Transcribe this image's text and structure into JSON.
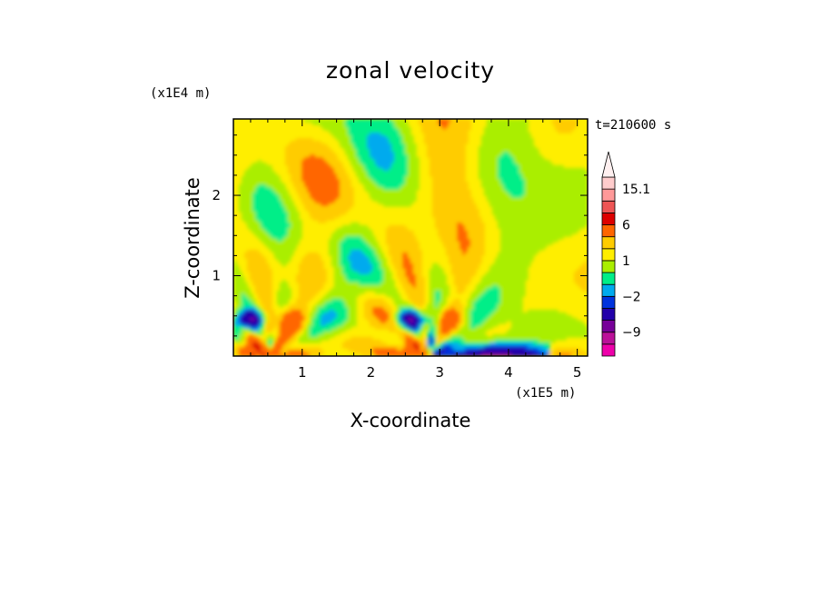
{
  "chart_data": {
    "type": "heatmap",
    "title": "zonal velocity",
    "xlabel": "X-coordinate",
    "ylabel": "Z-coordinate",
    "x_scale_label": "(x1E5 m)",
    "y_scale_label": "(x1E4 m)",
    "time_label": "t=210600 s",
    "xlim": [
      0,
      5.15
    ],
    "ylim": [
      0,
      2.95
    ],
    "x_ticks": [
      "1",
      "2",
      "3",
      "4",
      "5"
    ],
    "y_ticks": [
      "1",
      "2"
    ],
    "x_tick_values": [
      1,
      2,
      3,
      4,
      5
    ],
    "y_tick_values": [
      1,
      2
    ],
    "colorbar": {
      "labels": [
        "15.1",
        "6",
        "1",
        "-2",
        "-9"
      ],
      "label_values": [
        15.1,
        6,
        1,
        -2,
        -9
      ],
      "levels": [
        -15,
        -12,
        -9,
        -6,
        -3,
        -2,
        -1,
        0,
        1,
        2,
        3,
        6,
        9,
        12,
        15.1
      ],
      "colors": [
        "#ee00aa",
        "#bb1199",
        "#770099",
        "#2200aa",
        "#0033dd",
        "#00aaee",
        "#00ee88",
        "#aaee00",
        "#ffee00",
        "#ffcc00",
        "#ff6600",
        "#dd0000",
        "#ee5555",
        "#ff9999",
        "#ffcccc"
      ],
      "extend_color": "#fff0f0"
    },
    "features": {
      "mountains_x": [
        0.45,
        2.8
      ],
      "dominant_values": "mostly between -1 and 2 (green/yellow bands) aloft; strong low-level jets near the two ridges"
    }
  }
}
